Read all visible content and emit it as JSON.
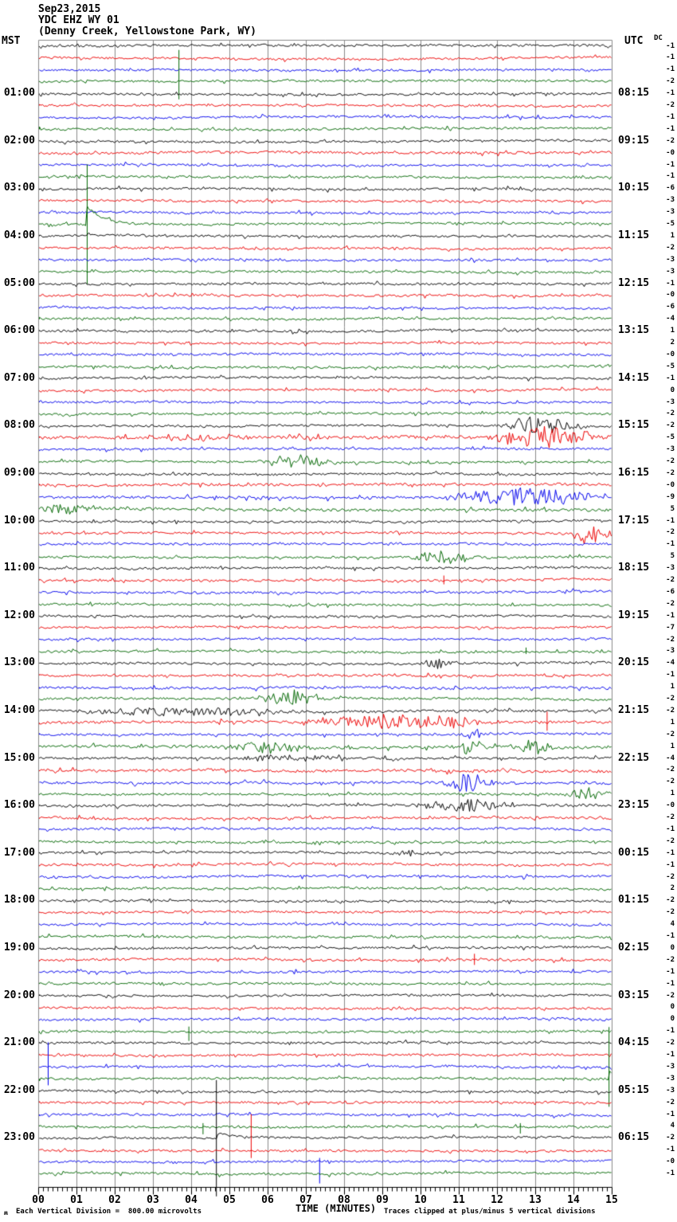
{
  "header": {
    "date": "Sep23,2015",
    "station": "YDC EHZ WY 01",
    "location": "(Denny Creek, Yellowstone Park, WY)",
    "left_tz": "MST",
    "right_tz": "UTC",
    "dc_label": "DC"
  },
  "footer": {
    "logo": "ʍ",
    "scale_note": "Each Vertical Division =  800.00 microvolts",
    "axis_title": "TIME (MINUTES)",
    "clip_note": "Traces clipped at plus/minus 5 vertical divisions"
  },
  "colors": {
    "trace_cycle": [
      "#000000",
      "#ee0000",
      "#0000ee",
      "#006600"
    ],
    "grid": "#8a8a8a",
    "axis": "#000000",
    "background": "#ffffff"
  },
  "chart_data": {
    "type": "line",
    "subtype": "helicorder-seismogram",
    "title": "YDC EHZ WY 01 (Denny Creek, Yellowstone Park, WY) Sep23,2015",
    "xlabel": "TIME (MINUTES)",
    "minutes_per_line": 15,
    "lines": 96,
    "vertical_division_microvolts": 800.0,
    "clip_divisions": 5,
    "trace_color_cycle_names": [
      "black",
      "red",
      "blue",
      "green"
    ],
    "x_ticks": [
      "00",
      "01",
      "02",
      "03",
      "04",
      "05",
      "06",
      "07",
      "08",
      "09",
      "10",
      "11",
      "12",
      "13",
      "14",
      "15"
    ],
    "left_time_labels": [
      "01:00",
      "02:00",
      "03:00",
      "04:00",
      "05:00",
      "06:00",
      "07:00",
      "08:00",
      "09:00",
      "10:00",
      "11:00",
      "12:00",
      "13:00",
      "14:00",
      "15:00",
      "16:00",
      "17:00",
      "18:00",
      "19:00",
      "20:00",
      "21:00",
      "22:00",
      "23:00"
    ],
    "right_time_labels": [
      "08:15",
      "09:15",
      "10:15",
      "11:15",
      "12:15",
      "13:15",
      "14:15",
      "15:15",
      "16:15",
      "17:15",
      "18:15",
      "19:15",
      "20:15",
      "21:15",
      "22:15",
      "23:15",
      "00:15",
      "01:15",
      "02:15",
      "03:15",
      "04:15",
      "05:15",
      "06:15"
    ],
    "label_start_row": 4,
    "label_row_step": 4,
    "dc_offsets": [
      "-1",
      "-1",
      "-1",
      "-2",
      "-1",
      "-2",
      "-1",
      "-1",
      "-2",
      "-0",
      "-1",
      "-1",
      "-6",
      "-3",
      "-3",
      "-5",
      "1",
      "-2",
      "-3",
      "-3",
      "-1",
      "-0",
      "-6",
      "-4",
      "1",
      "2",
      "-0",
      "-5",
      "-1",
      "0",
      "-3",
      "-2",
      "-2",
      "-5",
      "-3",
      "-2",
      "-2",
      "-0",
      "-9",
      "5",
      "-1",
      "-2",
      "-1",
      "5",
      "-3",
      "-2",
      "-6",
      "-2",
      "-1",
      "-7",
      "-2",
      "-3",
      "-4",
      "-1",
      "1",
      "-2",
      "-2",
      "1",
      "-2",
      "1",
      "-4",
      "-2",
      "-2",
      "1",
      "-0",
      "-2",
      "-1",
      "-2",
      "-1",
      "-1",
      "-2",
      "2",
      "-2",
      "-2",
      "4",
      "-1",
      "0",
      "-2",
      "-1",
      "-1",
      "-2",
      "0",
      "0",
      "-1",
      "-2",
      "-1",
      "-3",
      "-3",
      "-3",
      "-2",
      "-1",
      "4",
      "-2",
      "-1",
      "-0",
      "-1"
    ],
    "noise_sigma_default": 1.35,
    "noise_sigma_overrides": {
      "9": 1.6,
      "33": 2.0,
      "37": 1.7,
      "38": 1.7,
      "39": 1.7,
      "54": 1.6,
      "56": 1.5,
      "57": 1.7,
      "59": 1.7,
      "61": 1.7,
      "62": 1.6,
      "64": 1.5,
      "65": 1.5
    },
    "events": [
      {
        "trace": 3,
        "type": "spike",
        "t": 3.67,
        "up": 40,
        "down": 22
      },
      {
        "trace": 15,
        "type": "spike",
        "t": 1.27,
        "up": 75,
        "down": 75,
        "decay": 22,
        "decay_len": 0.45
      },
      {
        "trace": 32,
        "type": "burst",
        "t0": 12.2,
        "t1": 13.9,
        "amp": 10
      },
      {
        "trace": 33,
        "type": "burst",
        "t0": 3.0,
        "t1": 5.2,
        "amp": 4
      },
      {
        "trace": 33,
        "type": "burst",
        "t0": 11.9,
        "t1": 14.5,
        "amp": 13
      },
      {
        "trace": 35,
        "type": "burst",
        "t0": 5.9,
        "t1": 7.6,
        "amp": 8
      },
      {
        "trace": 38,
        "type": "burst",
        "t0": 10.8,
        "t1": 14.6,
        "amp": 10
      },
      {
        "trace": 39,
        "type": "burst",
        "t0": 0.0,
        "t1": 1.6,
        "amp": 6
      },
      {
        "trace": 41,
        "type": "burst",
        "t0": 13.9,
        "t1": 14.7,
        "amp": 13
      },
      {
        "trace": 43,
        "type": "burst",
        "t0": 9.9,
        "t1": 11.3,
        "amp": 8
      },
      {
        "trace": 45,
        "type": "spike",
        "t": 10.6,
        "up": 6,
        "down": 5
      },
      {
        "trace": 51,
        "type": "spike",
        "t": 12.75,
        "up": 5,
        "down": 3
      },
      {
        "trace": 52,
        "type": "burst",
        "t0": 10.1,
        "t1": 10.8,
        "amp": 6
      },
      {
        "trace": 55,
        "type": "burst",
        "t0": 5.9,
        "t1": 7.4,
        "amp": 9
      },
      {
        "trace": 56,
        "type": "burst",
        "t0": 1.0,
        "t1": 6.8,
        "amp": 5
      },
      {
        "trace": 57,
        "type": "burst",
        "t0": 7.0,
        "t1": 11.8,
        "amp": 8
      },
      {
        "trace": 57,
        "type": "spike",
        "t": 13.3,
        "up": 14,
        "down": 10
      },
      {
        "trace": 58,
        "type": "burst",
        "t0": 11.0,
        "t1": 11.7,
        "amp": 6
      },
      {
        "trace": 59,
        "type": "burst",
        "t0": 5.0,
        "t1": 7.0,
        "amp": 7
      },
      {
        "trace": 59,
        "type": "burst",
        "t0": 11.0,
        "t1": 11.6,
        "amp": 10
      },
      {
        "trace": 59,
        "type": "burst",
        "t0": 12.5,
        "t1": 13.4,
        "amp": 8
      },
      {
        "trace": 60,
        "type": "burst",
        "t0": 5.3,
        "t1": 7.8,
        "amp": 4
      },
      {
        "trace": 62,
        "type": "burst",
        "t0": 10.7,
        "t1": 11.6,
        "amp": 11
      },
      {
        "trace": 63,
        "type": "burst",
        "t0": 13.9,
        "t1": 14.7,
        "amp": 9
      },
      {
        "trace": 64,
        "type": "burst",
        "t0": 10.0,
        "t1": 12.2,
        "amp": 8
      },
      {
        "trace": 68,
        "type": "burst",
        "t0": 9.4,
        "t1": 9.9,
        "amp": 5
      },
      {
        "trace": 77,
        "type": "spike",
        "t": 11.4,
        "up": 8,
        "down": 6
      },
      {
        "trace": 83,
        "type": "spike",
        "t": 3.93,
        "up": 6,
        "down": 12
      },
      {
        "trace": 86,
        "type": "spike",
        "t": 0.25,
        "up": 31,
        "down": 23
      },
      {
        "trace": 87,
        "type": "spike",
        "t": 14.92,
        "up": 65,
        "down": 35,
        "decay": 10,
        "decay_len": 0.3
      },
      {
        "trace": 91,
        "type": "spike",
        "t": 4.3,
        "up": 4,
        "down": 10
      },
      {
        "trace": 91,
        "type": "spike",
        "t": 12.6,
        "up": 4,
        "down": 9
      },
      {
        "trace": 92,
        "type": "spike",
        "t": 4.65,
        "up": 73,
        "down": 73,
        "decay": 6,
        "decay_len": 0.6
      },
      {
        "trace": 93,
        "type": "spike",
        "t": 5.56,
        "up": 45,
        "down": 10
      },
      {
        "trace": 94,
        "type": "spike",
        "t": 7.35,
        "up": 5,
        "down": 27
      }
    ]
  }
}
